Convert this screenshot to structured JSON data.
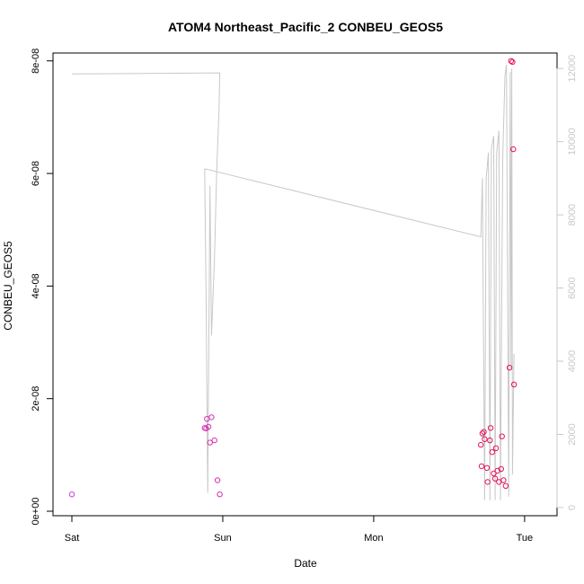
{
  "chart_data": {
    "type": "scatter",
    "title": "ATOM4 Northeast_Pacific_2 CONBEU_GEOS5",
    "xlabel": "Date",
    "ylabel": "CONBEU_GEOS5",
    "x_axis": {
      "range_days": [
        0,
        3.09
      ],
      "ticks": [
        {
          "day": 0,
          "label": "Sat"
        },
        {
          "day": 1,
          "label": "Sun"
        },
        {
          "day": 2,
          "label": "Mon"
        },
        {
          "day": 3,
          "label": "Tue"
        }
      ]
    },
    "y_axis_left": {
      "range": [
        0,
        8.06e-08
      ],
      "ticks": [
        {
          "value": 0,
          "label": "0e+00"
        },
        {
          "value": 2e-08,
          "label": "2e-08"
        },
        {
          "value": 4e-08,
          "label": "4e-08"
        },
        {
          "value": 6e-08,
          "label": "6e-08"
        },
        {
          "value": 8e-08,
          "label": "8e-08"
        }
      ]
    },
    "y_axis_right": {
      "range": [
        -100,
        12300
      ],
      "ticks": [
        {
          "value": 0,
          "label": "0"
        },
        {
          "value": 2000,
          "label": "2000"
        },
        {
          "value": 4000,
          "label": "4000"
        },
        {
          "value": 6000,
          "label": "6000"
        },
        {
          "value": 8000,
          "label": "8000"
        },
        {
          "value": 10000,
          "label": "10000"
        },
        {
          "value": 12000,
          "label": "12000"
        }
      ]
    },
    "series": [
      {
        "kind": "points",
        "axis": "left",
        "color_start": "#d040e0",
        "color_end": "#e8104a",
        "points": [
          {
            "x": 0.0,
            "y": 3e-09
          },
          {
            "x": 0.88,
            "y": 1.48e-08
          },
          {
            "x": 0.89,
            "y": 1.47e-08
          },
          {
            "x": 0.895,
            "y": 1.64e-08
          },
          {
            "x": 0.905,
            "y": 1.5e-08
          },
          {
            "x": 0.915,
            "y": 1.22e-08
          },
          {
            "x": 0.925,
            "y": 1.67e-08
          },
          {
            "x": 0.945,
            "y": 1.26e-08
          },
          {
            "x": 0.965,
            "y": 5.5e-09
          },
          {
            "x": 0.98,
            "y": 3e-09
          },
          {
            "x": 2.71,
            "y": 1.18e-08
          },
          {
            "x": 2.715,
            "y": 8e-09
          },
          {
            "x": 2.72,
            "y": 1.38e-08
          },
          {
            "x": 2.73,
            "y": 1.41e-08
          },
          {
            "x": 2.735,
            "y": 1.28e-08
          },
          {
            "x": 2.75,
            "y": 7.7e-09
          },
          {
            "x": 2.755,
            "y": 5.2e-09
          },
          {
            "x": 2.77,
            "y": 1.26e-08
          },
          {
            "x": 2.775,
            "y": 1.48e-08
          },
          {
            "x": 2.785,
            "y": 1.05e-08
          },
          {
            "x": 2.795,
            "y": 6.7e-09
          },
          {
            "x": 2.805,
            "y": 5.8e-09
          },
          {
            "x": 2.81,
            "y": 1.12e-08
          },
          {
            "x": 2.82,
            "y": 7.2e-09
          },
          {
            "x": 2.83,
            "y": 5.2e-09
          },
          {
            "x": 2.845,
            "y": 7.5e-09
          },
          {
            "x": 2.85,
            "y": 1.33e-08
          },
          {
            "x": 2.86,
            "y": 5.5e-09
          },
          {
            "x": 2.875,
            "y": 4.5e-09
          },
          {
            "x": 2.9,
            "y": 2.55e-08
          },
          {
            "x": 2.91,
            "y": 8e-08
          },
          {
            "x": 2.92,
            "y": 7.98e-08
          },
          {
            "x": 2.925,
            "y": 6.43e-08
          },
          {
            "x": 2.93,
            "y": 2.25e-08
          }
        ]
      },
      {
        "kind": "line",
        "axis": "right",
        "color": "#c8c8c8",
        "points": [
          {
            "x": 0.0,
            "y": 11850
          },
          {
            "x": 0.98,
            "y": 11880
          },
          {
            "x": 0.975,
            "y": 10900
          },
          {
            "x": 0.96,
            "y": 9200
          },
          {
            "x": 0.945,
            "y": 6800
          },
          {
            "x": 0.925,
            "y": 4700
          },
          {
            "x": 0.915,
            "y": 8800
          },
          {
            "x": 0.9,
            "y": 400
          },
          {
            "x": 0.89,
            "y": 5500
          },
          {
            "x": 0.88,
            "y": 9250
          },
          {
            "x": 0.89,
            "y": 9250
          },
          {
            "x": 2.71,
            "y": 7400
          },
          {
            "x": 2.71,
            "y": 7400
          },
          {
            "x": 2.72,
            "y": 9000
          },
          {
            "x": 2.735,
            "y": 200
          },
          {
            "x": 2.745,
            "y": 9000
          },
          {
            "x": 2.76,
            "y": 9700
          },
          {
            "x": 2.77,
            "y": 200
          },
          {
            "x": 2.78,
            "y": 9800
          },
          {
            "x": 2.795,
            "y": 10150
          },
          {
            "x": 2.805,
            "y": 200
          },
          {
            "x": 2.815,
            "y": 9700
          },
          {
            "x": 2.83,
            "y": 10300
          },
          {
            "x": 2.84,
            "y": 200
          },
          {
            "x": 2.855,
            "y": 9500
          },
          {
            "x": 2.87,
            "y": 11800
          },
          {
            "x": 2.88,
            "y": 12100
          },
          {
            "x": 2.895,
            "y": 300
          },
          {
            "x": 2.905,
            "y": 11900
          },
          {
            "x": 2.91,
            "y": 3800
          },
          {
            "x": 2.915,
            "y": 12000
          },
          {
            "x": 2.92,
            "y": 900
          },
          {
            "x": 2.93,
            "y": 4200
          }
        ]
      }
    ],
    "grid": false,
    "legend": "none"
  }
}
